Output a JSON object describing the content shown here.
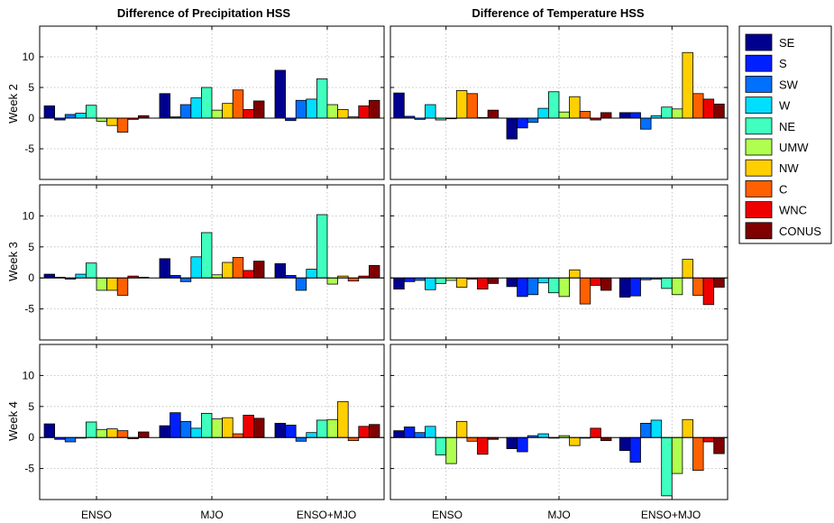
{
  "figure": {
    "column_titles": [
      "Difference of Precipitation HSS",
      "Difference of Temperature HSS"
    ],
    "row_labels": [
      "Week 2",
      "Week 3",
      "Week 4"
    ],
    "categories": [
      "ENSO",
      "MJO",
      "ENSO+MJO"
    ],
    "y_ticks": [
      -5,
      0,
      5,
      10
    ],
    "y_tick_labels": [
      "-5",
      "0",
      "5",
      "10"
    ],
    "legend": [
      {
        "name": "SE",
        "color": "#00008f"
      },
      {
        "name": "S",
        "color": "#0020ff"
      },
      {
        "name": "SW",
        "color": "#0070ff"
      },
      {
        "name": "W",
        "color": "#00dfff"
      },
      {
        "name": "NE",
        "color": "#40ffbf"
      },
      {
        "name": "UMW",
        "color": "#b0ff50"
      },
      {
        "name": "NW",
        "color": "#ffcf00"
      },
      {
        "name": "C",
        "color": "#ff6000"
      },
      {
        "name": "WNC",
        "color": "#ef0000"
      },
      {
        "name": "CONUS",
        "color": "#800000"
      }
    ]
  },
  "chart_data": [
    {
      "type": "bar",
      "title": "Difference of Precipitation HSS",
      "ylabel": "Week 2",
      "categories": [
        "ENSO",
        "MJO",
        "ENSO+MJO"
      ],
      "ylim": [
        -10,
        15
      ],
      "grid": true,
      "series": [
        {
          "name": "SE",
          "values": [
            2.0,
            4.0,
            7.8
          ]
        },
        {
          "name": "S",
          "values": [
            -0.3,
            0.2,
            -0.4
          ]
        },
        {
          "name": "SW",
          "values": [
            0.6,
            2.2,
            2.9
          ]
        },
        {
          "name": "W",
          "values": [
            0.8,
            3.3,
            3.1
          ]
        },
        {
          "name": "NE",
          "values": [
            2.1,
            5.0,
            6.4
          ]
        },
        {
          "name": "UMW",
          "values": [
            -0.5,
            1.3,
            2.2
          ]
        },
        {
          "name": "NW",
          "values": [
            -1.2,
            2.4,
            1.4
          ]
        },
        {
          "name": "C",
          "values": [
            -2.3,
            4.6,
            0.2
          ]
        },
        {
          "name": "WNC",
          "values": [
            -0.2,
            1.4,
            2.0
          ]
        },
        {
          "name": "CONUS",
          "values": [
            0.4,
            2.8,
            2.9
          ]
        }
      ]
    },
    {
      "type": "bar",
      "title": "Difference of Temperature HSS",
      "ylabel": "Week 2",
      "categories": [
        "ENSO",
        "MJO",
        "ENSO+MJO"
      ],
      "ylim": [
        -10,
        15
      ],
      "grid": true,
      "series": [
        {
          "name": "SE",
          "values": [
            4.1,
            -3.4,
            0.9
          ]
        },
        {
          "name": "S",
          "values": [
            0.3,
            -1.6,
            0.9
          ]
        },
        {
          "name": "SW",
          "values": [
            -0.2,
            -0.7,
            -1.8
          ]
        },
        {
          "name": "W",
          "values": [
            2.2,
            1.6,
            0.4
          ]
        },
        {
          "name": "NE",
          "values": [
            -0.3,
            4.3,
            1.8
          ]
        },
        {
          "name": "UMW",
          "values": [
            -0.1,
            1.0,
            1.5
          ]
        },
        {
          "name": "NW",
          "values": [
            4.5,
            3.5,
            10.7
          ]
        },
        {
          "name": "C",
          "values": [
            4.0,
            1.1,
            4.0
          ]
        },
        {
          "name": "WNC",
          "values": [
            0.1,
            -0.3,
            3.1
          ]
        },
        {
          "name": "CONUS",
          "values": [
            1.3,
            0.9,
            2.3
          ]
        }
      ]
    },
    {
      "type": "bar",
      "title": "",
      "ylabel": "Week 3",
      "categories": [
        "ENSO",
        "MJO",
        "ENSO+MJO"
      ],
      "ylim": [
        -10,
        15
      ],
      "grid": true,
      "series": [
        {
          "name": "SE",
          "values": [
            0.6,
            3.1,
            2.3
          ]
        },
        {
          "name": "S",
          "values": [
            0.1,
            0.4,
            0.4
          ]
        },
        {
          "name": "SW",
          "values": [
            -0.2,
            -0.6,
            -2.0
          ]
        },
        {
          "name": "W",
          "values": [
            0.6,
            3.4,
            1.4
          ]
        },
        {
          "name": "NE",
          "values": [
            2.4,
            7.3,
            10.2
          ]
        },
        {
          "name": "UMW",
          "values": [
            -2.0,
            0.5,
            -1.0
          ]
        },
        {
          "name": "NW",
          "values": [
            -2.0,
            2.5,
            0.3
          ]
        },
        {
          "name": "C",
          "values": [
            -2.8,
            3.3,
            -0.5
          ]
        },
        {
          "name": "WNC",
          "values": [
            0.3,
            1.2,
            0.3
          ]
        },
        {
          "name": "CONUS",
          "values": [
            0.1,
            2.7,
            2.0
          ]
        }
      ]
    },
    {
      "type": "bar",
      "title": "",
      "ylabel": "Week 3",
      "categories": [
        "ENSO",
        "MJO",
        "ENSO+MJO"
      ],
      "ylim": [
        -10,
        15
      ],
      "grid": true,
      "series": [
        {
          "name": "SE",
          "values": [
            -1.8,
            -1.4,
            -3.1
          ]
        },
        {
          "name": "S",
          "values": [
            -0.6,
            -3.0,
            -2.9
          ]
        },
        {
          "name": "SW",
          "values": [
            -0.4,
            -2.7,
            -0.3
          ]
        },
        {
          "name": "W",
          "values": [
            -1.9,
            -0.8,
            -0.2
          ]
        },
        {
          "name": "NE",
          "values": [
            -0.9,
            -2.4,
            -1.7
          ]
        },
        {
          "name": "UMW",
          "values": [
            -0.4,
            -3.0,
            -2.7
          ]
        },
        {
          "name": "NW",
          "values": [
            -1.5,
            1.3,
            3.0
          ]
        },
        {
          "name": "C",
          "values": [
            -0.2,
            -4.2,
            -2.8
          ]
        },
        {
          "name": "WNC",
          "values": [
            -1.8,
            -1.2,
            -4.3
          ]
        },
        {
          "name": "CONUS",
          "values": [
            -0.9,
            -2.0,
            -1.5
          ]
        }
      ]
    },
    {
      "type": "bar",
      "title": "",
      "ylabel": "Week 4",
      "categories": [
        "ENSO",
        "MJO",
        "ENSO+MJO"
      ],
      "ylim": [
        -10,
        15
      ],
      "grid": true,
      "series": [
        {
          "name": "SE",
          "values": [
            2.2,
            1.9,
            2.3
          ]
        },
        {
          "name": "S",
          "values": [
            -0.3,
            4.0,
            2.0
          ]
        },
        {
          "name": "SW",
          "values": [
            -0.7,
            2.6,
            -0.6
          ]
        },
        {
          "name": "W",
          "values": [
            -0.1,
            1.5,
            0.8
          ]
        },
        {
          "name": "NE",
          "values": [
            2.5,
            3.9,
            2.8
          ]
        },
        {
          "name": "UMW",
          "values": [
            1.3,
            3.0,
            2.9
          ]
        },
        {
          "name": "NW",
          "values": [
            1.4,
            3.2,
            5.8
          ]
        },
        {
          "name": "C",
          "values": [
            1.1,
            0.6,
            -0.5
          ]
        },
        {
          "name": "WNC",
          "values": [
            -0.2,
            3.6,
            1.8
          ]
        },
        {
          "name": "CONUS",
          "values": [
            0.9,
            3.1,
            2.1
          ]
        }
      ]
    },
    {
      "type": "bar",
      "title": "",
      "ylabel": "Week 4",
      "categories": [
        "ENSO",
        "MJO",
        "ENSO+MJO"
      ],
      "ylim": [
        -10,
        15
      ],
      "grid": true,
      "series": [
        {
          "name": "SE",
          "values": [
            1.1,
            -1.8,
            -2.1
          ]
        },
        {
          "name": "S",
          "values": [
            1.7,
            -2.3,
            -4.0
          ]
        },
        {
          "name": "SW",
          "values": [
            0.8,
            0.3,
            2.3
          ]
        },
        {
          "name": "W",
          "values": [
            1.8,
            0.6,
            2.8
          ]
        },
        {
          "name": "NE",
          "values": [
            -2.8,
            -0.1,
            -9.4
          ]
        },
        {
          "name": "UMW",
          "values": [
            -4.2,
            0.3,
            -5.8
          ]
        },
        {
          "name": "NW",
          "values": [
            2.6,
            -1.3,
            2.9
          ]
        },
        {
          "name": "C",
          "values": [
            -0.6,
            -0.1,
            -5.3
          ]
        },
        {
          "name": "WNC",
          "values": [
            -2.7,
            1.5,
            -0.7
          ]
        },
        {
          "name": "CONUS",
          "values": [
            -0.3,
            -0.5,
            -2.6
          ]
        }
      ]
    }
  ]
}
